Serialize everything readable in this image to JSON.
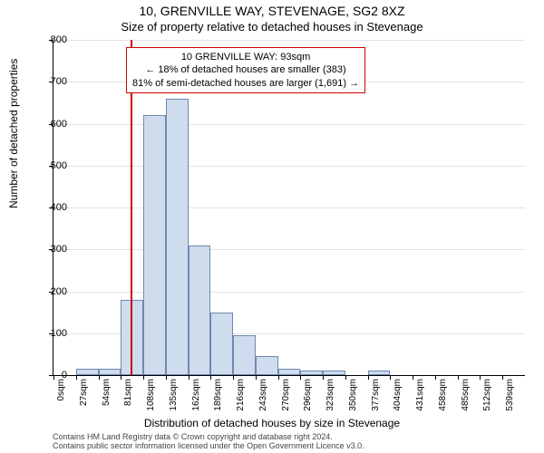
{
  "header": {
    "title": "10, GRENVILLE WAY, STEVENAGE, SG2 8XZ",
    "subtitle": "Size of property relative to detached houses in Stevenage"
  },
  "chart": {
    "type": "histogram",
    "ylabel": "Number of detached properties",
    "xlabel": "Distribution of detached houses by size in Stevenage",
    "ylim": [
      0,
      800
    ],
    "ytick_step": 100,
    "bar_fill": "#cfdcee",
    "bar_stroke": "#6e88b0",
    "grid_color": "#e2e2e2",
    "background_color": "#ffffff",
    "marker_color": "#cc0000",
    "marker_x_index": 3.45,
    "categories": [
      "0sqm",
      "27sqm",
      "54sqm",
      "81sqm",
      "108sqm",
      "135sqm",
      "162sqm",
      "189sqm",
      "216sqm",
      "243sqm",
      "270sqm",
      "296sqm",
      "323sqm",
      "350sqm",
      "377sqm",
      "404sqm",
      "431sqm",
      "458sqm",
      "485sqm",
      "512sqm",
      "539sqm"
    ],
    "values": [
      0,
      15,
      15,
      180,
      620,
      660,
      310,
      150,
      95,
      45,
      15,
      10,
      10,
      0,
      10,
      0,
      0,
      0,
      0,
      0,
      0
    ],
    "annotation": {
      "line1": "10 GRENVILLE WAY: 93sqm",
      "line2": "← 18% of detached houses are smaller (383)",
      "line3": "81% of semi-detached houses are larger (1,691) →"
    }
  },
  "footer": {
    "line1": "Contains HM Land Registry data © Crown copyright and database right 2024.",
    "line2": "Contains public sector information licensed under the Open Government Licence v3.0."
  }
}
